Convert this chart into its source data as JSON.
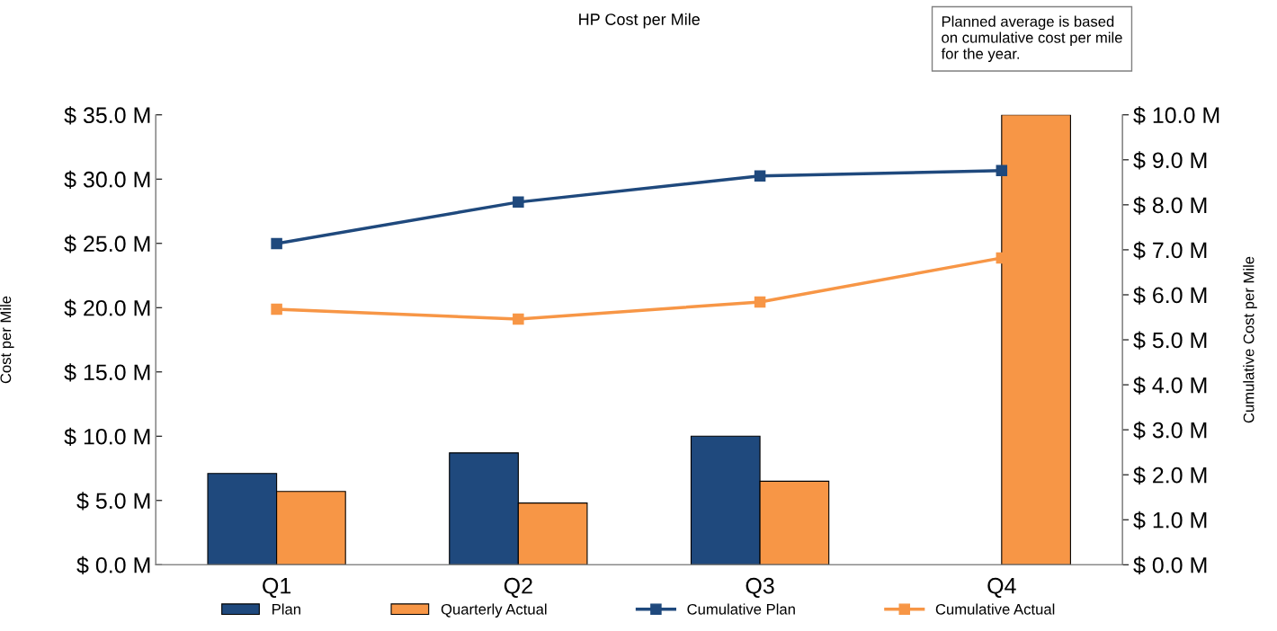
{
  "chart_data": {
    "type": "bar",
    "title": "HP Cost per Mile",
    "ylabel": "Cost per Mile",
    "y2label": "Cumulative Cost per Mile",
    "categories": [
      "Q1",
      "Q2",
      "Q3",
      "Q4"
    ],
    "series": [
      {
        "name": "Plan",
        "color": "#1f497d",
        "values": [
          7.1,
          8.7,
          10.0,
          null
        ]
      },
      {
        "name": "Quarterly Actual",
        "color": "#f79646",
        "values": [
          5.7,
          4.8,
          6.5,
          35.0
        ]
      },
      {
        "name": "Cumulative Plan",
        "type": "line",
        "axis": "y2",
        "color": "#1f497d",
        "marker": "square",
        "values": [
          7.14,
          8.06,
          8.64,
          8.76
        ]
      },
      {
        "name": "Cumulative Actual",
        "type": "line",
        "axis": "y2",
        "color": "#f79646",
        "marker": "square",
        "values": [
          5.68,
          5.46,
          5.84,
          6.82
        ]
      }
    ],
    "ylim": [
      0,
      35
    ],
    "yticks": [
      {
        "value": 0,
        "label": "$ 0.0 M"
      },
      {
        "value": 5,
        "label": "$ 5.0 M"
      },
      {
        "value": 10,
        "label": "$ 10.0 M"
      },
      {
        "value": 15,
        "label": "$ 15.0 M"
      },
      {
        "value": 20,
        "label": "$ 20.0 M"
      },
      {
        "value": 25,
        "label": "$ 25.0 M"
      },
      {
        "value": 30,
        "label": "$ 30.0 M"
      },
      {
        "value": 35,
        "label": "$ 35.0 M"
      }
    ],
    "y2lim": [
      0,
      10
    ],
    "y2ticks": [
      {
        "value": 0,
        "label": "$ 0.0 M"
      },
      {
        "value": 1,
        "label": "$ 1.0 M"
      },
      {
        "value": 2,
        "label": "$ 2.0 M"
      },
      {
        "value": 3,
        "label": "$ 3.0 M"
      },
      {
        "value": 4,
        "label": "$ 4.0 M"
      },
      {
        "value": 5,
        "label": "$ 5.0 M"
      },
      {
        "value": 6,
        "label": "$ 6.0 M"
      },
      {
        "value": 7,
        "label": "$ 7.0 M"
      },
      {
        "value": 8,
        "label": "$ 8.0 M"
      },
      {
        "value": 9,
        "label": "$ 9.0 M"
      },
      {
        "value": 10,
        "label": "$ 10.0 M"
      }
    ],
    "annotations": [
      "Planned average is based on cumulative cost per mile for the year."
    ],
    "grid": false,
    "legend": "bottom"
  }
}
